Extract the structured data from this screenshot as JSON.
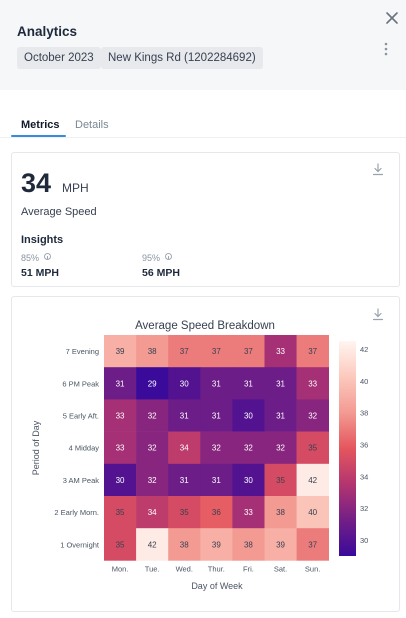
{
  "header": {
    "title": "Analytics",
    "chips": [
      "October 2023",
      "New Kings Rd (1202284692)"
    ]
  },
  "tabs": [
    {
      "label": "Metrics",
      "active": true
    },
    {
      "label": "Details",
      "active": false
    }
  ],
  "summary": {
    "value": "34",
    "unit": "MPH",
    "label": "Average Speed",
    "insights_title": "Insights",
    "insights": [
      {
        "label": "85%",
        "value": "51 MPH"
      },
      {
        "label": "95%",
        "value": "56 MPH"
      }
    ]
  },
  "icons": {
    "close": "close-icon",
    "more": "more-vertical-icon",
    "download": "download-icon",
    "info": "info-icon"
  },
  "colors": {
    "accent": "#3a8bd8",
    "header_bg": "#f6f7f8"
  },
  "chart_data": {
    "type": "heatmap",
    "title": "Average Speed Breakdown",
    "xlabel": "Day of Week",
    "ylabel": "Period of Day",
    "x": [
      "Mon.",
      "Tue.",
      "Wed.",
      "Thur.",
      "Fri.",
      "Sat.",
      "Sun."
    ],
    "y": [
      "7 Evening",
      "6 PM Peak",
      "5 Early Aft.",
      "4 Midday",
      "3 AM Peak",
      "2 Early Morn.",
      "1 Overnight"
    ],
    "values": [
      [
        39,
        38,
        37,
        37,
        37,
        33,
        37
      ],
      [
        31,
        29,
        30,
        31,
        31,
        31,
        33
      ],
      [
        33,
        32,
        31,
        31,
        30,
        31,
        32
      ],
      [
        33,
        32,
        34,
        32,
        32,
        32,
        35
      ],
      [
        30,
        32,
        31,
        31,
        30,
        35,
        42
      ],
      [
        35,
        34,
        35,
        36,
        33,
        38,
        40
      ],
      [
        35,
        42,
        38,
        39,
        38,
        39,
        37
      ]
    ],
    "colorbar": {
      "min": 29,
      "max": 42.5,
      "ticks": [
        30,
        32,
        34,
        36,
        38,
        40,
        42
      ]
    },
    "colorscale": [
      "#fff5f0",
      "#fcc9bd",
      "#f39a93",
      "#e4565d",
      "#b33570",
      "#731f86",
      "#3a0a9a"
    ]
  }
}
